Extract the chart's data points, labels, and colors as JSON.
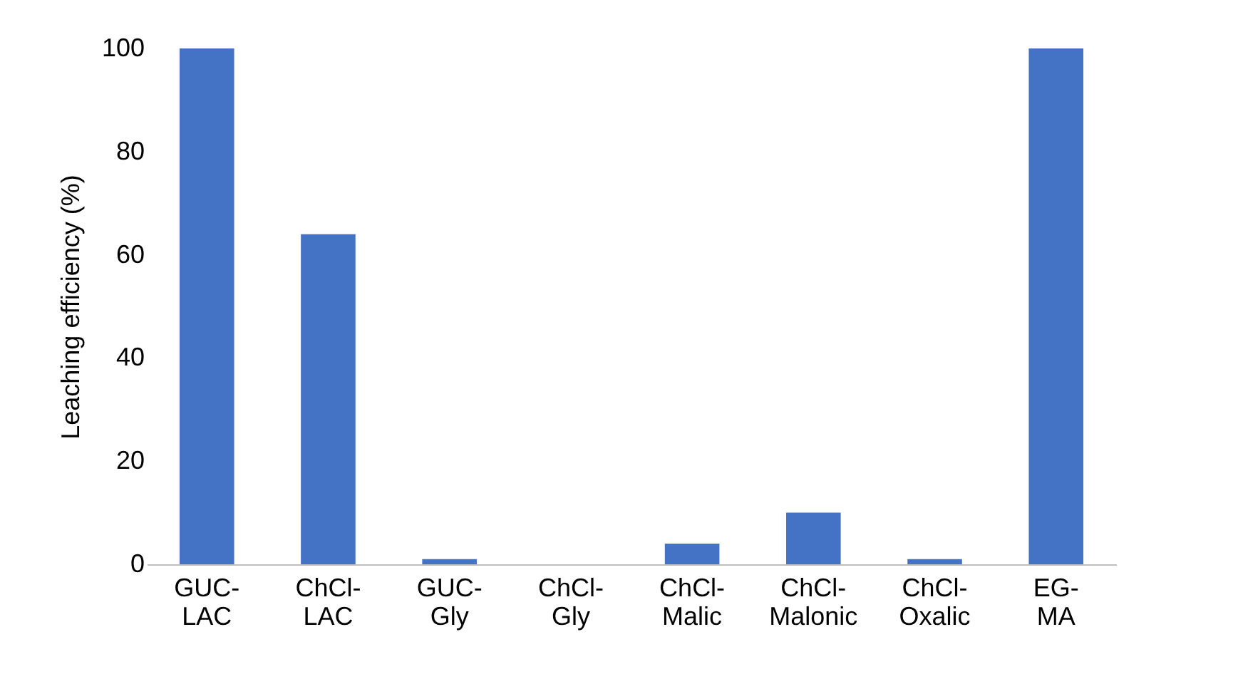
{
  "chart_data": {
    "type": "bar",
    "ylabel": "Leaching efficiency (%)",
    "categories": [
      "GUC-LAC",
      "ChCl-LAC",
      "GUC-Gly",
      "ChCl-Gly",
      "ChCl-Malic",
      "ChCl-Malonic",
      "ChCl-Oxalic",
      "EG-MA"
    ],
    "values": [
      100,
      64,
      1,
      0,
      4,
      10,
      1,
      100
    ],
    "color": "#4472c4",
    "ylim": [
      0,
      100
    ],
    "yticks": [
      0,
      20,
      40,
      60,
      80,
      100
    ],
    "grid": false
  }
}
